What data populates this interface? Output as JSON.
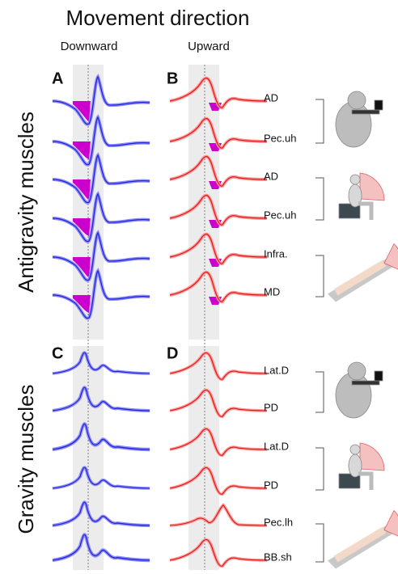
{
  "title": "Movement direction",
  "columns": [
    "Downward",
    "Upward"
  ],
  "panels": [
    "A",
    "B",
    "C",
    "D"
  ],
  "groups": [
    {
      "label": "Antigravity muscles",
      "muscles": [
        "AD",
        "Pec.uh",
        "AD",
        "Pec.uh",
        "Infra.",
        "MD"
      ]
    },
    {
      "label": "Gravity muscles",
      "muscles": [
        "Lat.D",
        "PD",
        "Lat.D",
        "PD",
        "Pec.lh",
        "BB.sh"
      ]
    }
  ]
}
